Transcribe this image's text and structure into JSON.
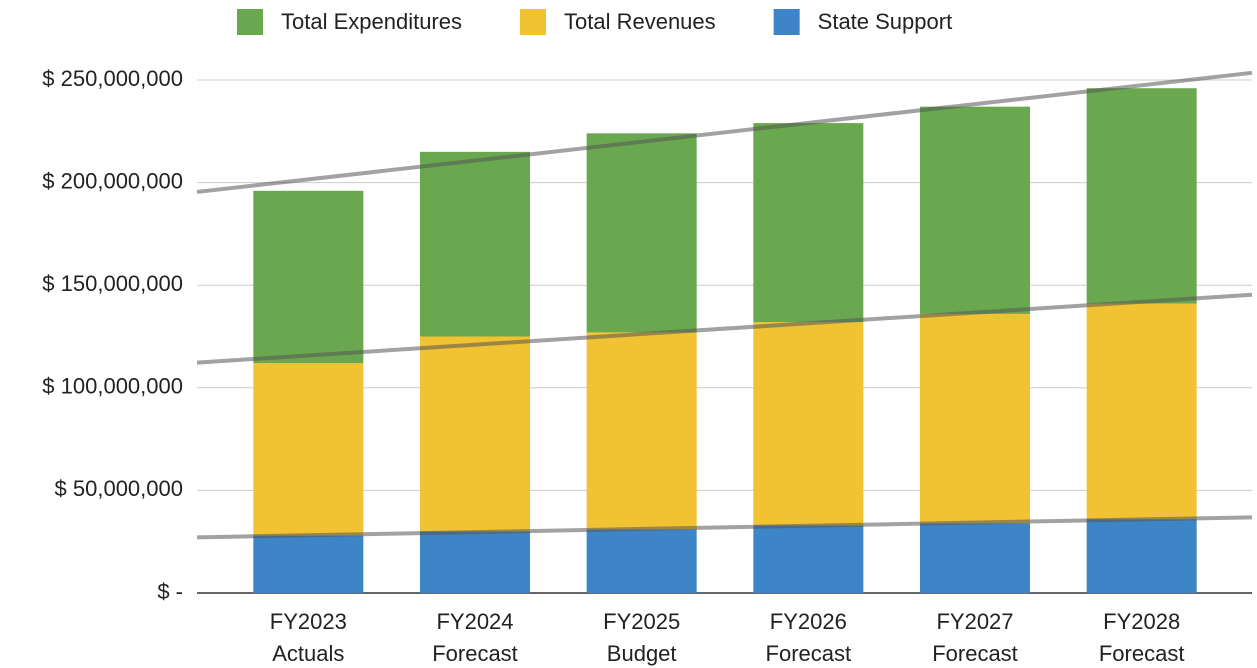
{
  "chart_data": {
    "type": "stacked_bar",
    "categories": [
      [
        "FY2023",
        "Actuals"
      ],
      [
        "FY2024",
        "Forecast"
      ],
      [
        "FY2025",
        "Budget"
      ],
      [
        "FY2026",
        "Forecast"
      ],
      [
        "FY2027",
        "Forecast"
      ],
      [
        "FY2028",
        "Forecast"
      ]
    ],
    "series": [
      {
        "name": "Total Expenditures",
        "color": "#6aa84f",
        "values": [
          84000000,
          90000000,
          97000000,
          97000000,
          101000000,
          105000000
        ]
      },
      {
        "name": "Total Revenues",
        "color": "#f1c232",
        "values": [
          84000000,
          95000000,
          96000000,
          99000000,
          102000000,
          105000000
        ]
      },
      {
        "name": "State Support",
        "color": "#3d85c6",
        "values": [
          28000000,
          30000000,
          31000000,
          33000000,
          34000000,
          36000000
        ]
      }
    ],
    "ylim": [
      0,
      250000000
    ],
    "yticks": [
      {
        "value": 0,
        "label": "$ -"
      },
      {
        "value": 50000000,
        "label": "$ 50,000,000"
      },
      {
        "value": 100000000,
        "label": "$ 100,000,000"
      },
      {
        "value": 150000000,
        "label": "$ 150,000,000"
      },
      {
        "value": 200000000,
        "label": "$ 200,000,000"
      },
      {
        "value": 250000000,
        "label": "$ 250,000,000"
      }
    ],
    "grid": true,
    "trendline": true,
    "legend": "top"
  }
}
